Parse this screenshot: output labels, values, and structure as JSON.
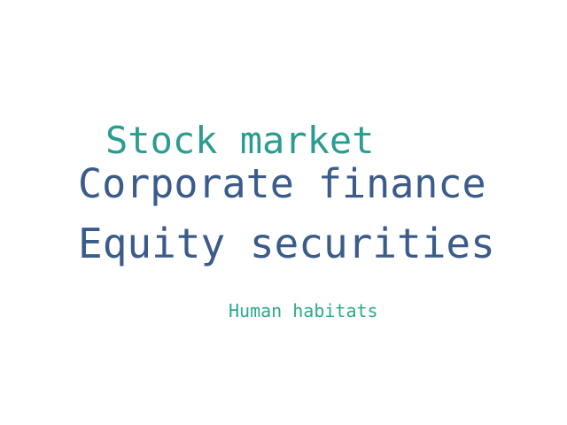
{
  "words": [
    {
      "text": "Stock market",
      "color": "#2a9d8f"
    },
    {
      "text": "Corporate finance",
      "color": "#3b5b8a"
    },
    {
      "text": "Equity securities",
      "color": "#3b5b8a"
    },
    {
      "text": "Human habitats",
      "color": "#2fa88c"
    }
  ]
}
